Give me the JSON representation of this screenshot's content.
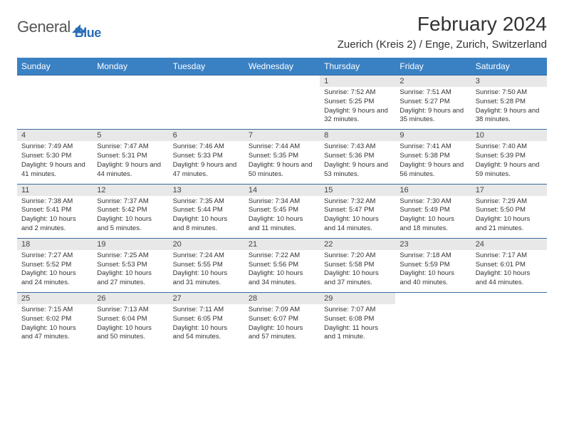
{
  "logo": {
    "general": "General",
    "blue": "Blue"
  },
  "title": "February 2024",
  "location": "Zuerich (Kreis 2) / Enge, Zurich, Switzerland",
  "colors": {
    "header_bg": "#3a81c4",
    "header_text": "#ffffff",
    "band_bg": "#e8e8e8",
    "row_border": "#3a6a9a",
    "logo_blue": "#2a6db8",
    "text": "#333333"
  },
  "day_headers": [
    "Sunday",
    "Monday",
    "Tuesday",
    "Wednesday",
    "Thursday",
    "Friday",
    "Saturday"
  ],
  "weeks": [
    [
      {
        "empty": true
      },
      {
        "empty": true
      },
      {
        "empty": true
      },
      {
        "empty": true
      },
      {
        "n": "1",
        "sunrise": "Sunrise: 7:52 AM",
        "sunset": "Sunset: 5:25 PM",
        "daylight": "Daylight: 9 hours and 32 minutes."
      },
      {
        "n": "2",
        "sunrise": "Sunrise: 7:51 AM",
        "sunset": "Sunset: 5:27 PM",
        "daylight": "Daylight: 9 hours and 35 minutes."
      },
      {
        "n": "3",
        "sunrise": "Sunrise: 7:50 AM",
        "sunset": "Sunset: 5:28 PM",
        "daylight": "Daylight: 9 hours and 38 minutes."
      }
    ],
    [
      {
        "n": "4",
        "sunrise": "Sunrise: 7:49 AM",
        "sunset": "Sunset: 5:30 PM",
        "daylight": "Daylight: 9 hours and 41 minutes."
      },
      {
        "n": "5",
        "sunrise": "Sunrise: 7:47 AM",
        "sunset": "Sunset: 5:31 PM",
        "daylight": "Daylight: 9 hours and 44 minutes."
      },
      {
        "n": "6",
        "sunrise": "Sunrise: 7:46 AM",
        "sunset": "Sunset: 5:33 PM",
        "daylight": "Daylight: 9 hours and 47 minutes."
      },
      {
        "n": "7",
        "sunrise": "Sunrise: 7:44 AM",
        "sunset": "Sunset: 5:35 PM",
        "daylight": "Daylight: 9 hours and 50 minutes."
      },
      {
        "n": "8",
        "sunrise": "Sunrise: 7:43 AM",
        "sunset": "Sunset: 5:36 PM",
        "daylight": "Daylight: 9 hours and 53 minutes."
      },
      {
        "n": "9",
        "sunrise": "Sunrise: 7:41 AM",
        "sunset": "Sunset: 5:38 PM",
        "daylight": "Daylight: 9 hours and 56 minutes."
      },
      {
        "n": "10",
        "sunrise": "Sunrise: 7:40 AM",
        "sunset": "Sunset: 5:39 PM",
        "daylight": "Daylight: 9 hours and 59 minutes."
      }
    ],
    [
      {
        "n": "11",
        "sunrise": "Sunrise: 7:38 AM",
        "sunset": "Sunset: 5:41 PM",
        "daylight": "Daylight: 10 hours and 2 minutes."
      },
      {
        "n": "12",
        "sunrise": "Sunrise: 7:37 AM",
        "sunset": "Sunset: 5:42 PM",
        "daylight": "Daylight: 10 hours and 5 minutes."
      },
      {
        "n": "13",
        "sunrise": "Sunrise: 7:35 AM",
        "sunset": "Sunset: 5:44 PM",
        "daylight": "Daylight: 10 hours and 8 minutes."
      },
      {
        "n": "14",
        "sunrise": "Sunrise: 7:34 AM",
        "sunset": "Sunset: 5:45 PM",
        "daylight": "Daylight: 10 hours and 11 minutes."
      },
      {
        "n": "15",
        "sunrise": "Sunrise: 7:32 AM",
        "sunset": "Sunset: 5:47 PM",
        "daylight": "Daylight: 10 hours and 14 minutes."
      },
      {
        "n": "16",
        "sunrise": "Sunrise: 7:30 AM",
        "sunset": "Sunset: 5:49 PM",
        "daylight": "Daylight: 10 hours and 18 minutes."
      },
      {
        "n": "17",
        "sunrise": "Sunrise: 7:29 AM",
        "sunset": "Sunset: 5:50 PM",
        "daylight": "Daylight: 10 hours and 21 minutes."
      }
    ],
    [
      {
        "n": "18",
        "sunrise": "Sunrise: 7:27 AM",
        "sunset": "Sunset: 5:52 PM",
        "daylight": "Daylight: 10 hours and 24 minutes."
      },
      {
        "n": "19",
        "sunrise": "Sunrise: 7:25 AM",
        "sunset": "Sunset: 5:53 PM",
        "daylight": "Daylight: 10 hours and 27 minutes."
      },
      {
        "n": "20",
        "sunrise": "Sunrise: 7:24 AM",
        "sunset": "Sunset: 5:55 PM",
        "daylight": "Daylight: 10 hours and 31 minutes."
      },
      {
        "n": "21",
        "sunrise": "Sunrise: 7:22 AM",
        "sunset": "Sunset: 5:56 PM",
        "daylight": "Daylight: 10 hours and 34 minutes."
      },
      {
        "n": "22",
        "sunrise": "Sunrise: 7:20 AM",
        "sunset": "Sunset: 5:58 PM",
        "daylight": "Daylight: 10 hours and 37 minutes."
      },
      {
        "n": "23",
        "sunrise": "Sunrise: 7:18 AM",
        "sunset": "Sunset: 5:59 PM",
        "daylight": "Daylight: 10 hours and 40 minutes."
      },
      {
        "n": "24",
        "sunrise": "Sunrise: 7:17 AM",
        "sunset": "Sunset: 6:01 PM",
        "daylight": "Daylight: 10 hours and 44 minutes."
      }
    ],
    [
      {
        "n": "25",
        "sunrise": "Sunrise: 7:15 AM",
        "sunset": "Sunset: 6:02 PM",
        "daylight": "Daylight: 10 hours and 47 minutes."
      },
      {
        "n": "26",
        "sunrise": "Sunrise: 7:13 AM",
        "sunset": "Sunset: 6:04 PM",
        "daylight": "Daylight: 10 hours and 50 minutes."
      },
      {
        "n": "27",
        "sunrise": "Sunrise: 7:11 AM",
        "sunset": "Sunset: 6:05 PM",
        "daylight": "Daylight: 10 hours and 54 minutes."
      },
      {
        "n": "28",
        "sunrise": "Sunrise: 7:09 AM",
        "sunset": "Sunset: 6:07 PM",
        "daylight": "Daylight: 10 hours and 57 minutes."
      },
      {
        "n": "29",
        "sunrise": "Sunrise: 7:07 AM",
        "sunset": "Sunset: 6:08 PM",
        "daylight": "Daylight: 11 hours and 1 minute."
      },
      {
        "empty": true
      },
      {
        "empty": true
      }
    ]
  ]
}
